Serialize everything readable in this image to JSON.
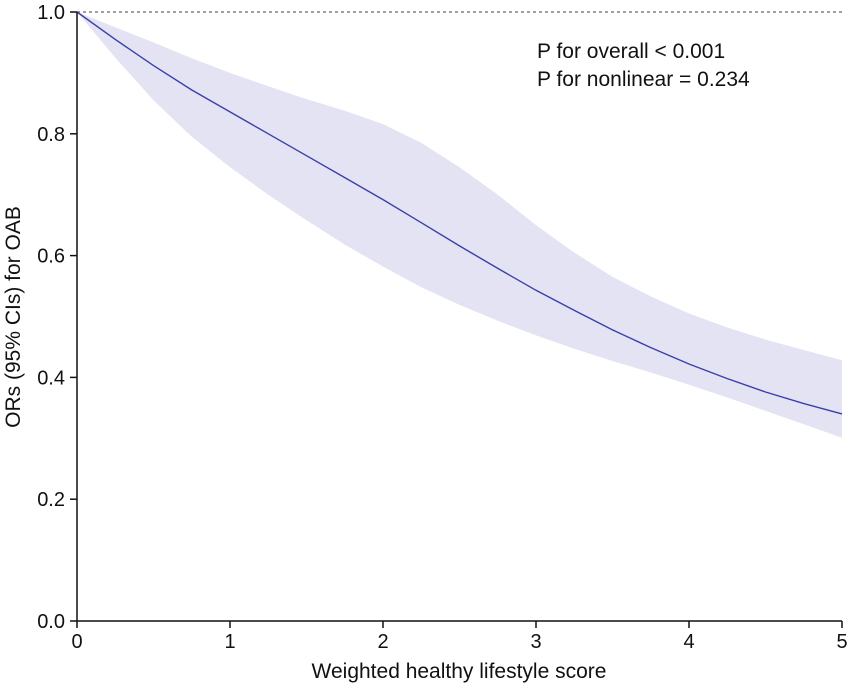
{
  "chart_data": {
    "type": "line",
    "title": "",
    "xlabel": "Weighted healthy lifestyle score",
    "ylabel": "ORs (95% CIs) for OAB",
    "xlim": [
      0,
      5
    ],
    "ylim": [
      0,
      1.0
    ],
    "xticks": [
      0,
      1,
      2,
      3,
      4,
      5
    ],
    "yticks": [
      0.0,
      0.2,
      0.4,
      0.6,
      0.8,
      1.0
    ],
    "xtick_labels": [
      "0",
      "1",
      "2",
      "3",
      "4",
      "5"
    ],
    "ytick_labels": [
      "0.0",
      "0.2",
      "0.4",
      "0.6",
      "0.8",
      "1.0"
    ],
    "reference_line": {
      "y": 1.0,
      "style": "dashed"
    },
    "annotations": [
      "P for overall < 0.001",
      "P for nonlinear = 0.234"
    ],
    "series": [
      {
        "name": "OR",
        "x": [
          0,
          0.25,
          0.5,
          0.75,
          1.0,
          1.25,
          1.5,
          1.75,
          2.0,
          2.25,
          2.5,
          2.75,
          3.0,
          3.25,
          3.5,
          3.75,
          4.0,
          4.25,
          4.5,
          4.75,
          5.0
        ],
        "y": [
          1.0,
          0.955,
          0.912,
          0.872,
          0.836,
          0.8,
          0.764,
          0.728,
          0.692,
          0.654,
          0.616,
          0.579,
          0.543,
          0.51,
          0.478,
          0.449,
          0.422,
          0.398,
          0.376,
          0.357,
          0.34
        ],
        "lower": [
          1.0,
          0.925,
          0.855,
          0.795,
          0.745,
          0.7,
          0.658,
          0.618,
          0.582,
          0.548,
          0.519,
          0.493,
          0.469,
          0.447,
          0.427,
          0.408,
          0.388,
          0.367,
          0.345,
          0.323,
          0.301
        ],
        "upper": [
          1.0,
          0.975,
          0.95,
          0.924,
          0.9,
          0.878,
          0.857,
          0.838,
          0.816,
          0.785,
          0.745,
          0.7,
          0.65,
          0.605,
          0.565,
          0.533,
          0.505,
          0.482,
          0.462,
          0.445,
          0.428
        ]
      }
    ],
    "colors": {
      "line": "#3b3fa8",
      "band": "#e3e3f4",
      "axis": "#111111",
      "reference": "#666666"
    }
  }
}
